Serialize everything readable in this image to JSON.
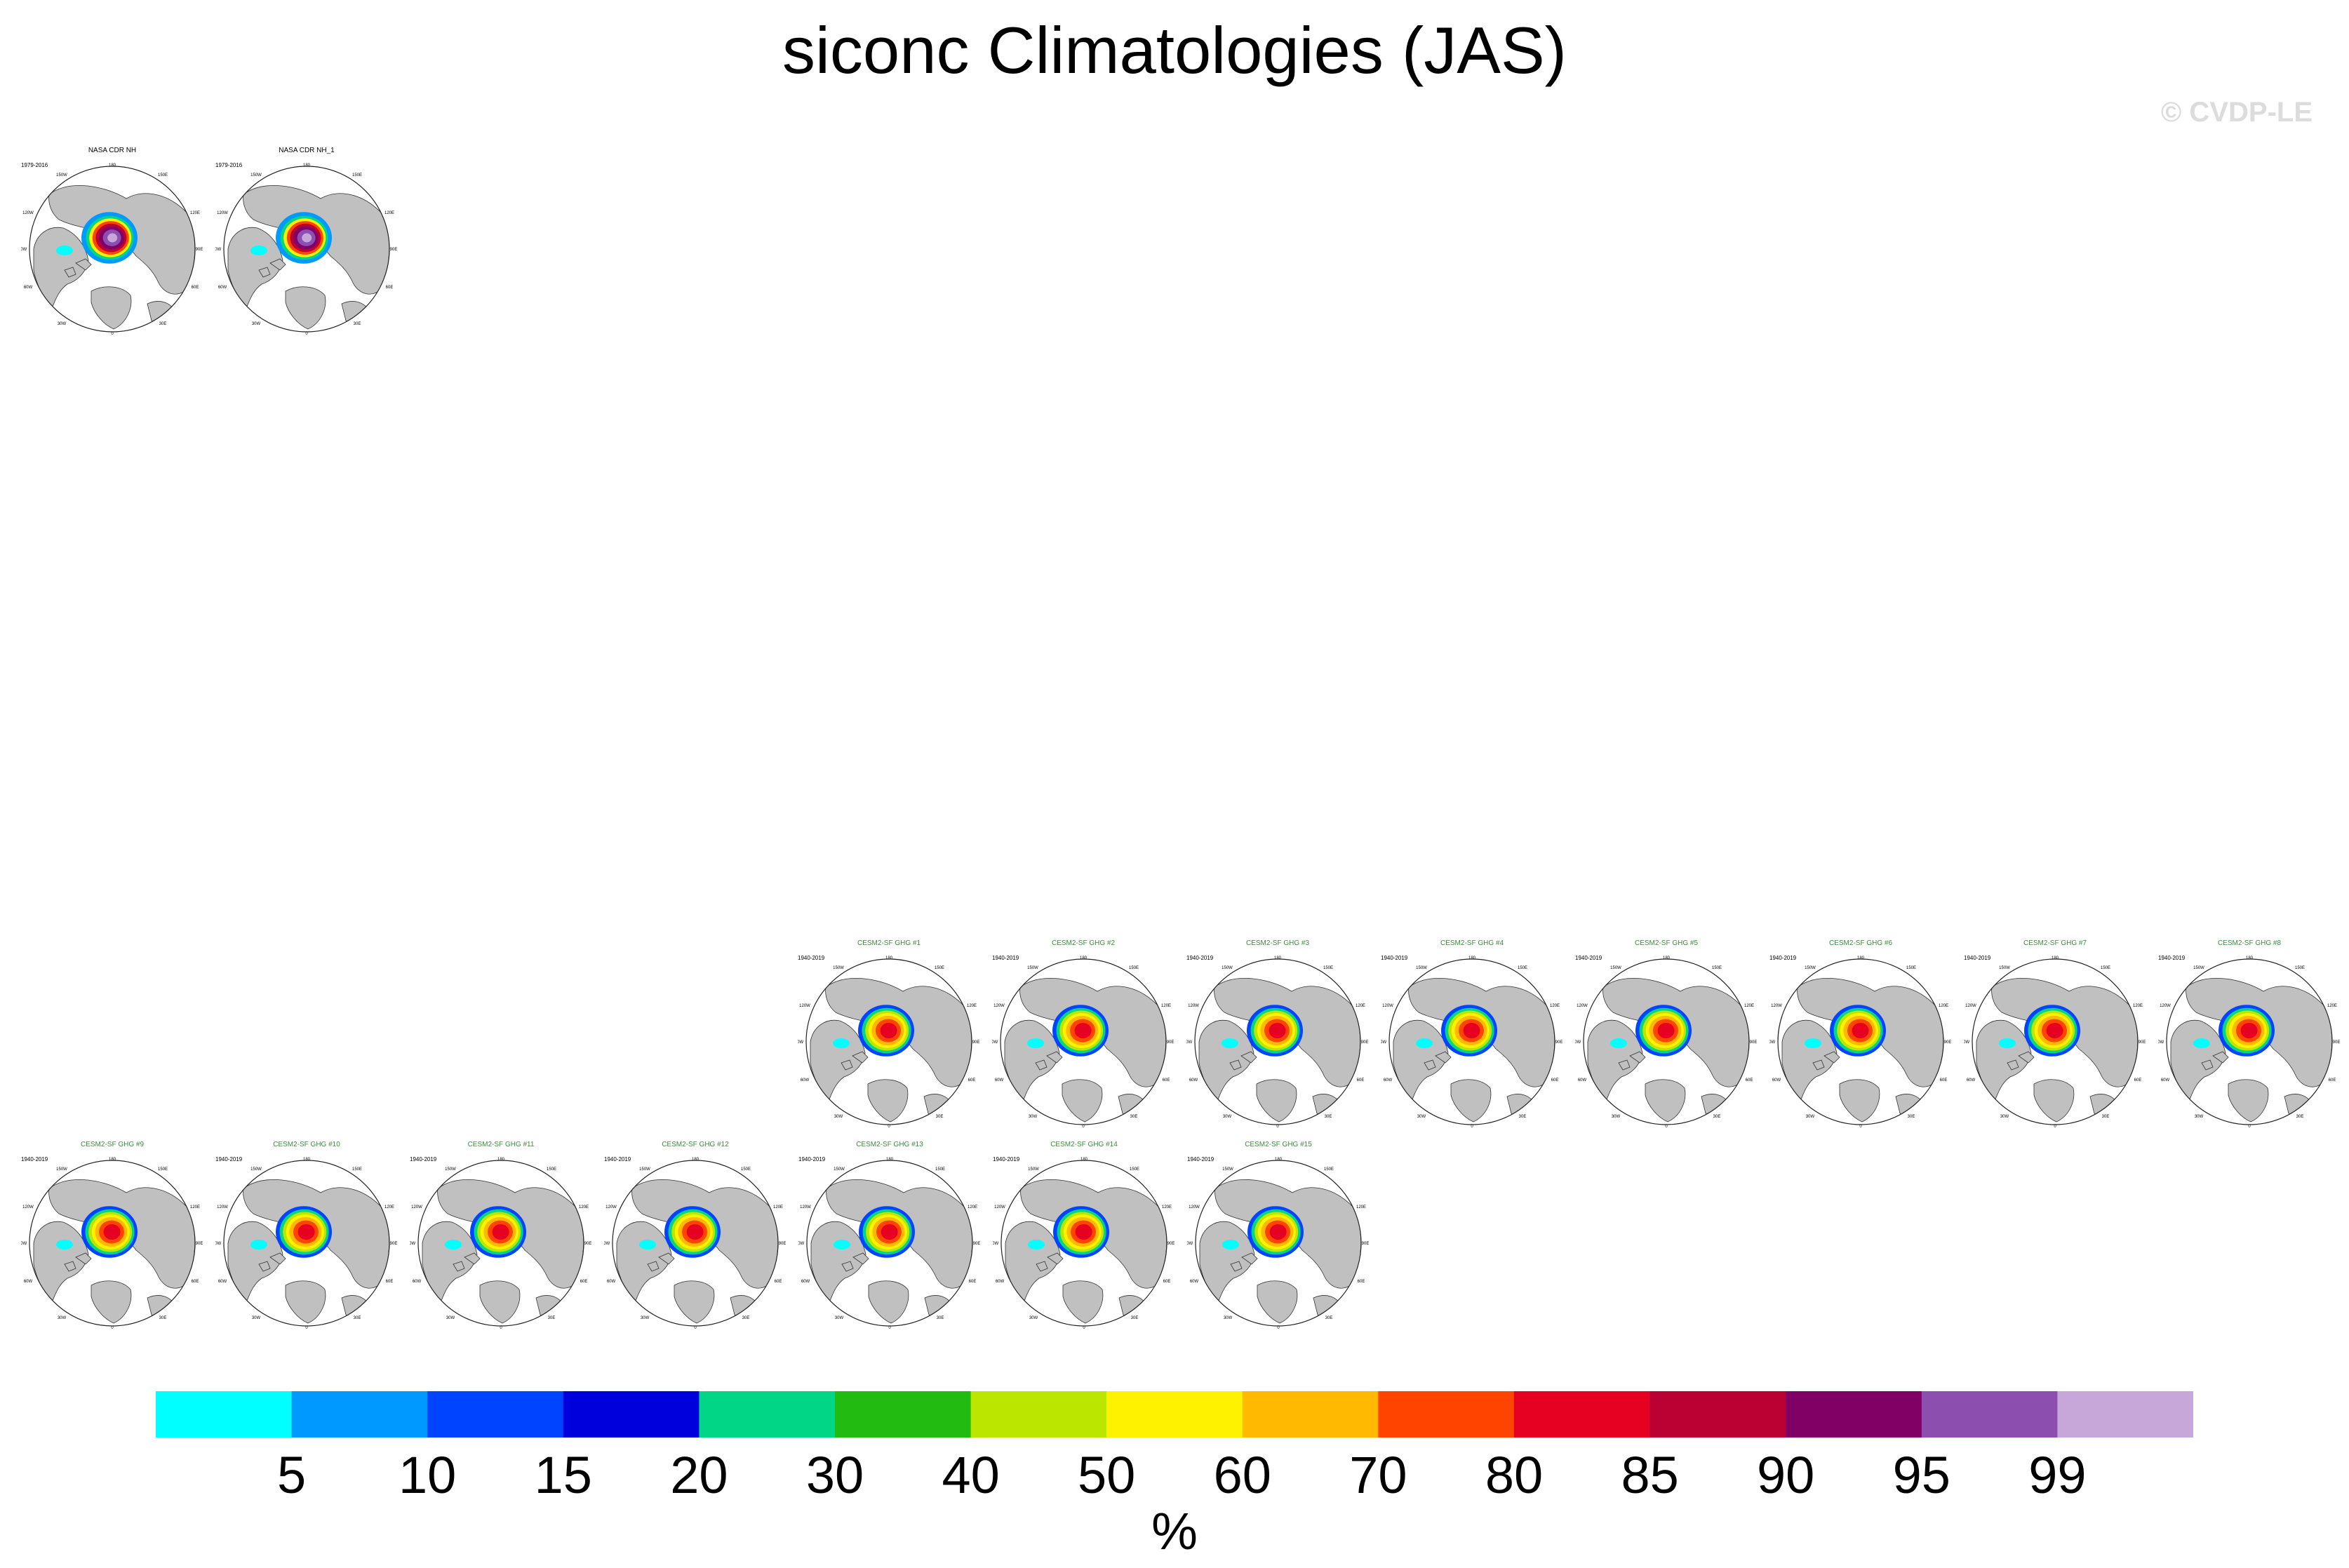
{
  "title": "siconc Climatologies (JAS)",
  "watermark": "© CVDP-LE",
  "panels": [
    {
      "name": "NASA CDR NH",
      "period": "1979-2016",
      "kind": "obs",
      "title_color": "#000000"
    },
    {
      "name": "NASA CDR NH_1",
      "period": "1979-2016",
      "kind": "obs",
      "title_color": "#000000"
    },
    {
      "name": "CESM2-SF GHG #1",
      "period": "1940-2019",
      "kind": "model",
      "title_color": "#3d8b3d"
    },
    {
      "name": "CESM2-SF GHG #2",
      "period": "1940-2019",
      "kind": "model",
      "title_color": "#3d8b3d"
    },
    {
      "name": "CESM2-SF GHG #3",
      "period": "1940-2019",
      "kind": "model",
      "title_color": "#3d8b3d"
    },
    {
      "name": "CESM2-SF GHG #4",
      "period": "1940-2019",
      "kind": "model",
      "title_color": "#3d8b3d"
    },
    {
      "name": "CESM2-SF GHG #5",
      "period": "1940-2019",
      "kind": "model",
      "title_color": "#3d8b3d"
    },
    {
      "name": "CESM2-SF GHG #6",
      "period": "1940-2019",
      "kind": "model",
      "title_color": "#3d8b3d"
    },
    {
      "name": "CESM2-SF GHG #7",
      "period": "1940-2019",
      "kind": "model",
      "title_color": "#3d8b3d"
    },
    {
      "name": "CESM2-SF GHG #8",
      "period": "1940-2019",
      "kind": "model",
      "title_color": "#3d8b3d"
    },
    {
      "name": "CESM2-SF GHG #9",
      "period": "1940-2019",
      "kind": "model",
      "title_color": "#3d8b3d"
    },
    {
      "name": "CESM2-SF GHG #10",
      "period": "1940-2019",
      "kind": "model",
      "title_color": "#3d8b3d"
    },
    {
      "name": "CESM2-SF GHG #11",
      "period": "1940-2019",
      "kind": "model",
      "title_color": "#3d8b3d"
    },
    {
      "name": "CESM2-SF GHG #12",
      "period": "1940-2019",
      "kind": "model",
      "title_color": "#3d8b3d"
    },
    {
      "name": "CESM2-SF GHG #13",
      "period": "1940-2019",
      "kind": "model",
      "title_color": "#3d8b3d"
    },
    {
      "name": "CESM2-SF GHG #14",
      "period": "1940-2019",
      "kind": "model",
      "title_color": "#3d8b3d"
    },
    {
      "name": "CESM2-SF GHG #15",
      "period": "1940-2019",
      "kind": "model",
      "title_color": "#3d8b3d"
    }
  ],
  "map_labels": [
    "180",
    "150W",
    "150E",
    "120W",
    "120E",
    "90W",
    "90E",
    "60W",
    "60E",
    "30W",
    "30E",
    "0"
  ],
  "colorbar": {
    "colors": [
      "#00ffff",
      "#0099ff",
      "#0044ff",
      "#0000dd",
      "#00d685",
      "#22bb11",
      "#bbe600",
      "#fff200",
      "#ffb900",
      "#ff4400",
      "#e60022",
      "#bb0033",
      "#800066",
      "#8c4eaf",
      "#c7a7d9"
    ],
    "tick_labels": [
      "5",
      "10",
      "15",
      "20",
      "30",
      "40",
      "50",
      "60",
      "70",
      "80",
      "85",
      "90",
      "95",
      "99"
    ],
    "units": "%"
  }
}
